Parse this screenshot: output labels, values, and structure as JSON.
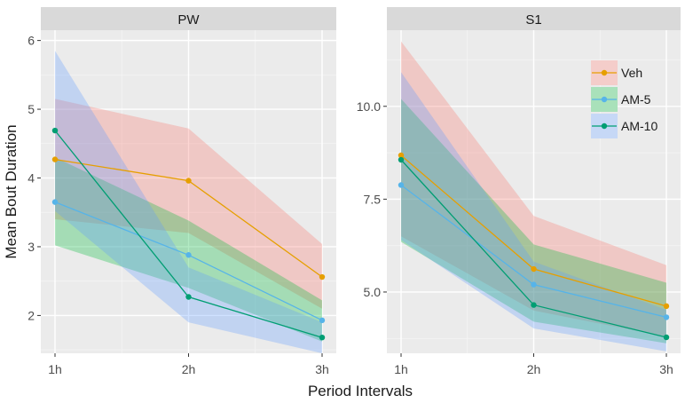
{
  "chart_data": {
    "type": "line",
    "xlabel": "Period Intervals",
    "ylabel": "Mean Bout Duration",
    "categories": [
      "1h",
      "2h",
      "3h"
    ],
    "legend": {
      "position": "top-right",
      "entries": [
        {
          "name": "Veh",
          "color": "#E69F00",
          "fill": "#F8766D"
        },
        {
          "name": "AM-5",
          "color": "#56B4E9",
          "fill": "#00BA38"
        },
        {
          "name": "AM-10",
          "color": "#009E73",
          "fill": "#619CFF"
        }
      ]
    },
    "panels": [
      {
        "title": "PW",
        "ylim": [
          1.45,
          6.15
        ],
        "yticks": [
          2,
          3,
          4,
          5,
          6
        ],
        "ytick_labels": [
          "2",
          "3",
          "4",
          "5",
          "6"
        ],
        "series": [
          {
            "name": "Veh",
            "values": [
              4.27,
              3.96,
              2.56
            ],
            "lower": [
              3.4,
              3.2,
              2.1
            ],
            "upper": [
              5.15,
              4.72,
              3.04
            ]
          },
          {
            "name": "AM-5",
            "values": [
              3.65,
              2.88,
              1.93
            ],
            "lower": [
              3.02,
              2.4,
              1.62
            ],
            "upper": [
              4.3,
              3.38,
              2.22
            ]
          },
          {
            "name": "AM-10",
            "values": [
              4.69,
              2.27,
              1.68
            ],
            "lower": [
              3.52,
              1.9,
              1.45
            ],
            "upper": [
              5.85,
              2.7,
              1.9
            ]
          }
        ]
      },
      {
        "title": "S1",
        "ylim": [
          3.35,
          12.05
        ],
        "yticks": [
          5.0,
          7.5,
          10.0
        ],
        "ytick_labels": [
          "5.0",
          "7.5",
          "10.0"
        ],
        "series": [
          {
            "name": "Veh",
            "values": [
              8.68,
              5.62,
              4.62
            ],
            "lower": [
              6.5,
              4.5,
              3.8
            ],
            "upper": [
              11.75,
              7.05,
              5.72
            ]
          },
          {
            "name": "AM-5",
            "values": [
              7.88,
              5.2,
              4.32
            ],
            "lower": [
              6.35,
              4.2,
              3.62
            ],
            "upper": [
              10.2,
              6.28,
              5.25
            ]
          },
          {
            "name": "AM-10",
            "values": [
              8.56,
              4.65,
              3.78
            ],
            "lower": [
              6.4,
              4.02,
              3.4
            ],
            "upper": [
              10.92,
              5.82,
              4.52
            ]
          }
        ]
      }
    ]
  }
}
